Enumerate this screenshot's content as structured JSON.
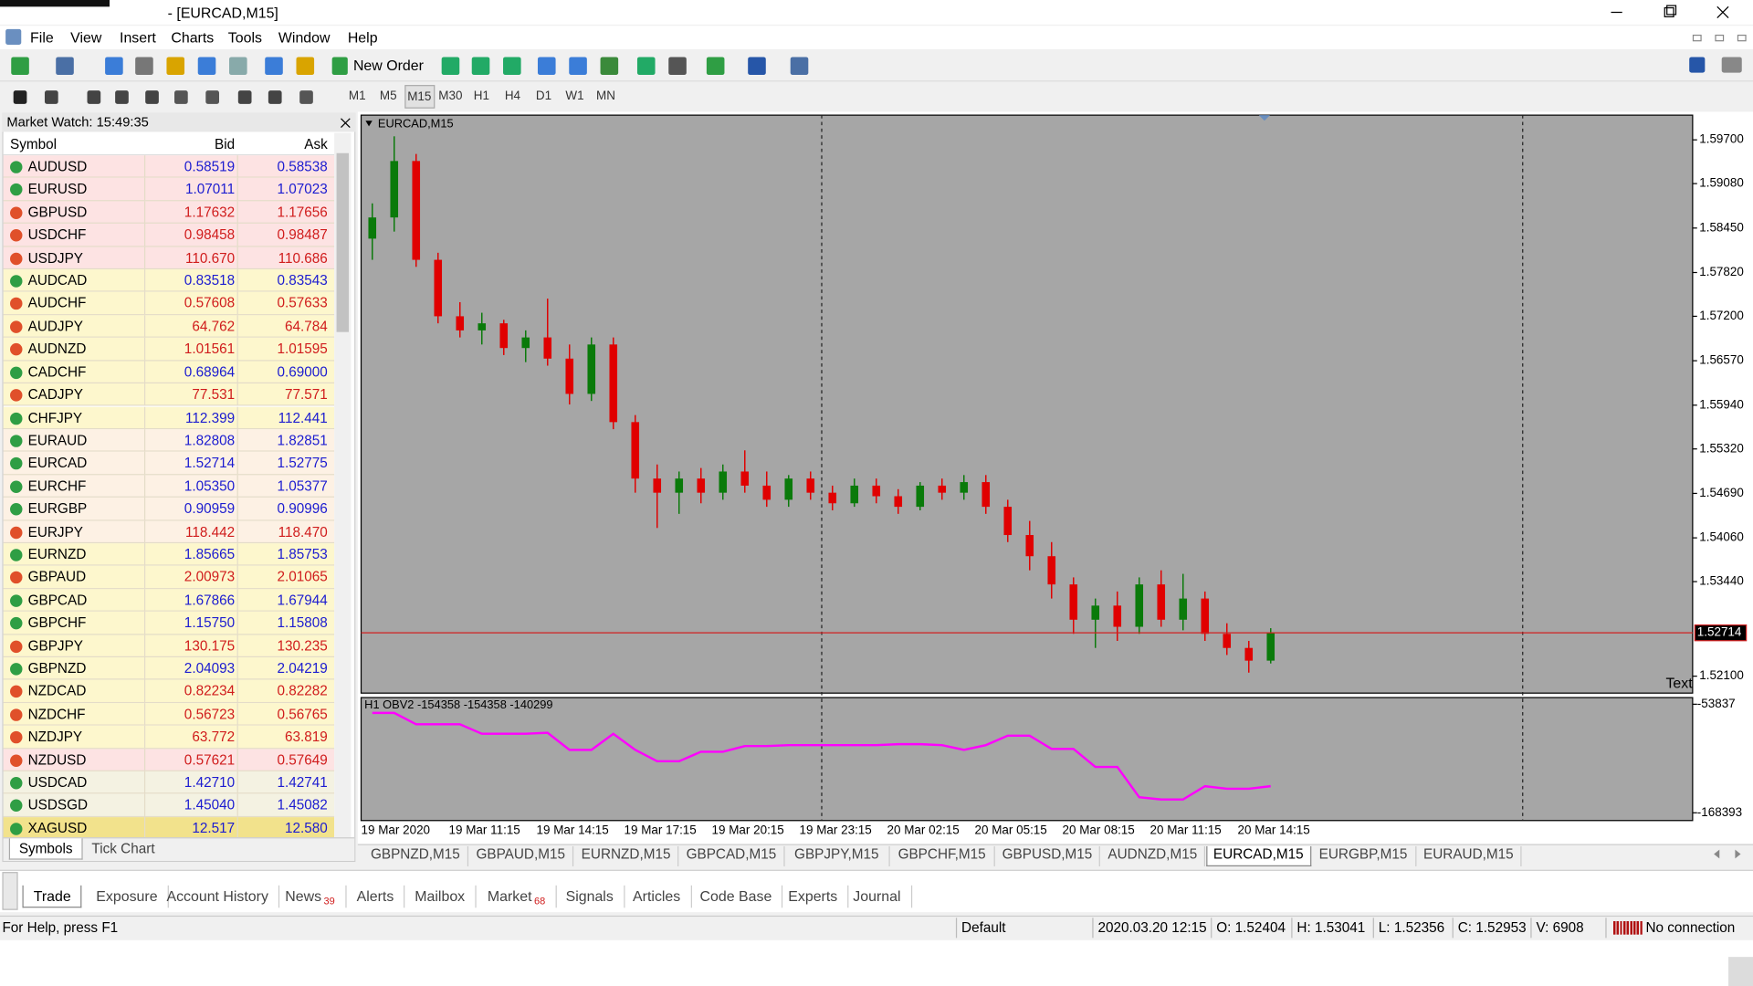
{
  "window": {
    "title": "- [EURCAD,M15]"
  },
  "menu": [
    "File",
    "View",
    "Insert",
    "Charts",
    "Tools",
    "Window",
    "Help"
  ],
  "toolbar": {
    "new_order": "New Order",
    "timeframes": [
      "M1",
      "M5",
      "M15",
      "M30",
      "H1",
      "H4",
      "D1",
      "W1",
      "MN"
    ],
    "active_timeframe": 2
  },
  "market_watch": {
    "title": "Market Watch: 15:49:35",
    "columns": [
      "Symbol",
      "Bid",
      "Ask"
    ],
    "rows": [
      {
        "symbol": "AUDUSD",
        "bid": "0.58519",
        "ask": "0.58538",
        "dir": "up",
        "color": "#fde3e3"
      },
      {
        "symbol": "EURUSD",
        "bid": "1.07011",
        "ask": "1.07023",
        "dir": "up",
        "color": "#fde3e3"
      },
      {
        "symbol": "GBPUSD",
        "bid": "1.17632",
        "ask": "1.17656",
        "dir": "down",
        "color": "#fde3e3"
      },
      {
        "symbol": "USDCHF",
        "bid": "0.98458",
        "ask": "0.98487",
        "dir": "down",
        "color": "#fde3e3"
      },
      {
        "symbol": "USDJPY",
        "bid": "110.670",
        "ask": "110.686",
        "dir": "down",
        "color": "#fde3e3"
      },
      {
        "symbol": "AUDCAD",
        "bid": "0.83518",
        "ask": "0.83543",
        "dir": "up",
        "color": "#fdf7cd"
      },
      {
        "symbol": "AUDCHF",
        "bid": "0.57608",
        "ask": "0.57633",
        "dir": "down",
        "color": "#fdf7cd"
      },
      {
        "symbol": "AUDJPY",
        "bid": "64.762",
        "ask": "64.784",
        "dir": "down",
        "color": "#fdf7cd"
      },
      {
        "symbol": "AUDNZD",
        "bid": "1.01561",
        "ask": "1.01595",
        "dir": "down",
        "color": "#fdf7cd"
      },
      {
        "symbol": "CADCHF",
        "bid": "0.68964",
        "ask": "0.69000",
        "dir": "up",
        "color": "#fdf7cd"
      },
      {
        "symbol": "CADJPY",
        "bid": "77.531",
        "ask": "77.571",
        "dir": "down",
        "color": "#fdf7cd"
      },
      {
        "symbol": "CHFJPY",
        "bid": "112.399",
        "ask": "112.441",
        "dir": "up",
        "color": "#fdf7cd"
      },
      {
        "symbol": "EURAUD",
        "bid": "1.82808",
        "ask": "1.82851",
        "dir": "up",
        "color": "#fdf1e4"
      },
      {
        "symbol": "EURCAD",
        "bid": "1.52714",
        "ask": "1.52775",
        "dir": "up",
        "color": "#fdf1e4"
      },
      {
        "symbol": "EURCHF",
        "bid": "1.05350",
        "ask": "1.05377",
        "dir": "up",
        "color": "#fdf1e4"
      },
      {
        "symbol": "EURGBP",
        "bid": "0.90959",
        "ask": "0.90996",
        "dir": "up",
        "color": "#fdf1e4"
      },
      {
        "symbol": "EURJPY",
        "bid": "118.442",
        "ask": "118.470",
        "dir": "down",
        "color": "#fdf1e4"
      },
      {
        "symbol": "EURNZD",
        "bid": "1.85665",
        "ask": "1.85753",
        "dir": "up",
        "color": "#fdf7cd"
      },
      {
        "symbol": "GBPAUD",
        "bid": "2.00973",
        "ask": "2.01065",
        "dir": "down",
        "color": "#fdf7cd"
      },
      {
        "symbol": "GBPCAD",
        "bid": "1.67866",
        "ask": "1.67944",
        "dir": "up",
        "color": "#fdf7cd"
      },
      {
        "symbol": "GBPCHF",
        "bid": "1.15750",
        "ask": "1.15808",
        "dir": "up",
        "color": "#fdf7cd"
      },
      {
        "symbol": "GBPJPY",
        "bid": "130.175",
        "ask": "130.235",
        "dir": "down",
        "color": "#fdf7cd"
      },
      {
        "symbol": "GBPNZD",
        "bid": "2.04093",
        "ask": "2.04219",
        "dir": "up",
        "color": "#fdf7cd"
      },
      {
        "symbol": "NZDCAD",
        "bid": "0.82234",
        "ask": "0.82282",
        "dir": "down",
        "color": "#fdf7cd"
      },
      {
        "symbol": "NZDCHF",
        "bid": "0.56723",
        "ask": "0.56765",
        "dir": "down",
        "color": "#fdf7cd"
      },
      {
        "symbol": "NZDJPY",
        "bid": "63.772",
        "ask": "63.819",
        "dir": "down",
        "color": "#fdf7cd"
      },
      {
        "symbol": "NZDUSD",
        "bid": "0.57621",
        "ask": "0.57649",
        "dir": "down",
        "color": "#fde3e3"
      },
      {
        "symbol": "USDCAD",
        "bid": "1.42710",
        "ask": "1.42741",
        "dir": "up",
        "color": "#f4f2e2"
      },
      {
        "symbol": "USDSGD",
        "bid": "1.45040",
        "ask": "1.45082",
        "dir": "up",
        "color": "#f4f2e2"
      },
      {
        "symbol": "XAGUSD",
        "bid": "12.517",
        "ask": "12.580",
        "dir": "up",
        "color": "#f2e28c"
      }
    ],
    "tabs": [
      "Symbols",
      "Tick Chart"
    ]
  },
  "chart_data": [
    {
      "type": "candlestick",
      "title": "EURCAD,M15",
      "annotation": "Text",
      "up_color": "#0a7a0a",
      "down_color": "#e00000",
      "categories": [
        "19 Mar 2020",
        null,
        null,
        null,
        "19 Mar 11:15",
        null,
        null,
        null,
        "19 Mar 14:15",
        null,
        null,
        null,
        "19 Mar 17:15",
        null,
        null,
        null,
        "19 Mar 20:15",
        null,
        null,
        null,
        "19 Mar 23:15",
        null,
        null,
        null,
        "20 Mar 02:15",
        null,
        null,
        null,
        "20 Mar 05:15",
        null,
        null,
        null,
        "20 Mar 08:15",
        null,
        null,
        null,
        "20 Mar 11:15",
        null,
        null,
        null,
        "20 Mar 14:15",
        null
      ],
      "open": [
        1.583,
        1.586,
        1.594,
        1.58,
        1.572,
        1.57,
        1.571,
        1.5675,
        1.569,
        1.566,
        1.561,
        1.568,
        1.557,
        1.549,
        1.547,
        1.549,
        1.547,
        1.55,
        1.548,
        1.546,
        1.549,
        1.547,
        1.5455,
        1.548,
        1.5465,
        1.545,
        1.548,
        1.547,
        1.5485,
        1.545,
        1.541,
        1.538,
        1.534,
        1.529,
        1.531,
        1.528,
        1.534,
        1.529,
        1.532,
        1.527,
        1.525,
        1.5232
      ],
      "high": [
        1.588,
        1.5975,
        1.595,
        1.581,
        1.574,
        1.5725,
        1.5715,
        1.57,
        1.5745,
        1.568,
        1.569,
        1.569,
        1.558,
        1.551,
        1.55,
        1.5505,
        1.551,
        1.553,
        1.55,
        1.5495,
        1.55,
        1.548,
        1.549,
        1.549,
        1.5475,
        1.5485,
        1.549,
        1.5495,
        1.5495,
        1.546,
        1.543,
        1.54,
        1.535,
        1.532,
        1.533,
        1.535,
        1.536,
        1.5355,
        1.533,
        1.5285,
        1.526,
        1.5278
      ],
      "low": [
        1.58,
        1.584,
        1.579,
        1.571,
        1.569,
        1.568,
        1.5665,
        1.5655,
        1.565,
        1.5595,
        1.56,
        1.556,
        1.547,
        1.542,
        1.544,
        1.5455,
        1.546,
        1.547,
        1.545,
        1.545,
        1.546,
        1.5445,
        1.545,
        1.5455,
        1.544,
        1.5445,
        1.546,
        1.546,
        1.544,
        1.54,
        1.536,
        1.532,
        1.527,
        1.525,
        1.526,
        1.527,
        1.528,
        1.5275,
        1.526,
        1.524,
        1.5215,
        1.5228
      ],
      "close": [
        1.586,
        1.594,
        1.58,
        1.572,
        1.57,
        1.571,
        1.5675,
        1.569,
        1.566,
        1.561,
        1.568,
        1.557,
        1.549,
        1.547,
        1.549,
        1.547,
        1.55,
        1.548,
        1.546,
        1.549,
        1.547,
        1.5455,
        1.548,
        1.5465,
        1.545,
        1.548,
        1.547,
        1.5485,
        1.545,
        1.541,
        1.538,
        1.534,
        1.529,
        1.531,
        1.528,
        1.534,
        1.529,
        1.532,
        1.527,
        1.525,
        1.5232,
        1.5271
      ],
      "current_price": 1.52714,
      "ylim": [
        1.5186,
        1.6005
      ],
      "yticks": [
        {
          "value": 1.597,
          "label": "1.59700"
        },
        {
          "value": 1.5908,
          "label": "1.59080"
        },
        {
          "value": 1.5845,
          "label": "1.58450"
        },
        {
          "value": 1.5782,
          "label": "1.57820"
        },
        {
          "value": 1.572,
          "label": "1.57200"
        },
        {
          "value": 1.5657,
          "label": "1.56570"
        },
        {
          "value": 1.5594,
          "label": "1.55940"
        },
        {
          "value": 1.5532,
          "label": "1.55320"
        },
        {
          "value": 1.5469,
          "label": "1.54690"
        },
        {
          "value": 1.5406,
          "label": "1.54060"
        },
        {
          "value": 1.5344,
          "label": "1.53440"
        },
        {
          "value": 1.521,
          "label": "1.52100"
        }
      ]
    },
    {
      "type": "line",
      "title": "H1 OBV2 -154358 -154358 -140299",
      "series": [
        {
          "color": "#ff00ff",
          "values": [
            -63000,
            -63000,
            -75000,
            -75000,
            -75000,
            -85000,
            -85000,
            -85000,
            -84000,
            -102000,
            -102000,
            -85000,
            -102000,
            -114000,
            -114000,
            -104000,
            -104000,
            -98000,
            -98000,
            -97000,
            -97000,
            -97000,
            -97000,
            -97000,
            -96000,
            -96000,
            -97000,
            -102000,
            -97000,
            -87000,
            -87000,
            -101000,
            -101000,
            -120000,
            -120000,
            -152000,
            -154358,
            -154358,
            -140299,
            -143000,
            -143000,
            -140299
          ]
        }
      ],
      "ylim": [
        -176576,
        -46823
      ],
      "yticks": [
        -53837,
        -168393
      ]
    }
  ],
  "chart_tabs": [
    "GBPNZD,M15",
    "GBPAUD,M15",
    "EURNZD,M15",
    "GBPCAD,M15",
    "GBPJPY,M15",
    "GBPCHF,M15",
    "GBPUSD,M15",
    "AUDNZD,M15",
    "EURCAD,M15",
    "EURGBP,M15",
    "EURAUD,M15"
  ],
  "active_chart_tab": 8,
  "terminal": {
    "tabs": [
      {
        "label": "Trade"
      },
      {
        "label": "Exposure"
      },
      {
        "label": "Account History"
      },
      {
        "label": "News",
        "badge": "39"
      },
      {
        "label": "Alerts"
      },
      {
        "label": "Mailbox"
      },
      {
        "label": "Market",
        "badge": "68"
      },
      {
        "label": "Signals"
      },
      {
        "label": "Articles"
      },
      {
        "label": "Code Base"
      },
      {
        "label": "Experts"
      },
      {
        "label": "Journal"
      }
    ],
    "active_tab": 0
  },
  "status": {
    "help": "For Help, press F1",
    "profile": "Default",
    "time": "2020.03.20 12:15",
    "open": "O: 1.52404",
    "high": "H: 1.53041",
    "low": "L: 1.52356",
    "close": "C: 1.52953",
    "volume": "V: 6908",
    "connection": "No connection"
  }
}
